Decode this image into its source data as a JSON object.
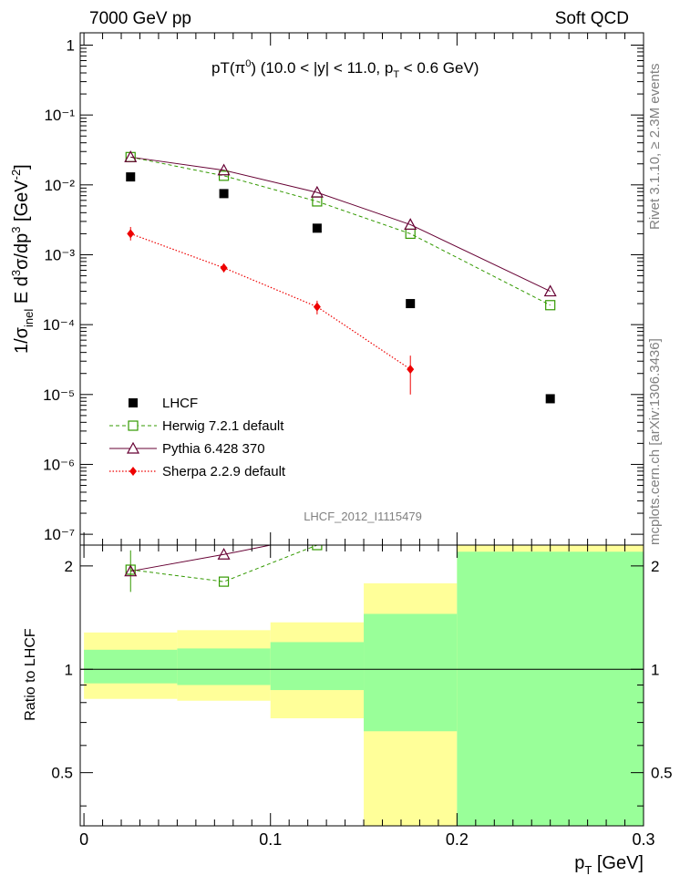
{
  "header": {
    "left": "7000 GeV pp",
    "right": "Soft QCD"
  },
  "side": {
    "rivet": "Rivet 3.1.10, ≥ 2.3M events",
    "mcplots": "mcplots.cern.ch [arXiv:1306.3436]"
  },
  "colors": {
    "lhcf": "#000000",
    "herwig": "#339900",
    "pythia": "#660033",
    "sherpa": "#ee0000",
    "band_inner": "#99ff99",
    "band_outer": "#ffff99"
  },
  "chart_data": [
    {
      "type": "scatter",
      "name": "main",
      "title": "pT(π⁰) (10.0 < |y| < 11.0, p_T < 0.6 GeV)",
      "ylabel": "1/σ_inel E d³σ/dp³ [GeV⁻²]",
      "yscale": "log",
      "ylim": [
        7e-08,
        1.5
      ],
      "xlim": [
        -0.002,
        0.3
      ],
      "yticks": [
        {
          "v": 1e-07,
          "label": "10⁻⁷"
        },
        {
          "v": 1e-06,
          "label": "10⁻⁶"
        },
        {
          "v": 1e-05,
          "label": "10⁻⁵"
        },
        {
          "v": 0.0001,
          "label": "10⁻⁴"
        },
        {
          "v": 0.001,
          "label": "10⁻³"
        },
        {
          "v": 0.01,
          "label": "10⁻²"
        },
        {
          "v": 0.1,
          "label": "10⁻¹"
        },
        {
          "v": 1,
          "label": "1"
        }
      ],
      "watermark": "LHCF_2012_I1115479",
      "legend_position": "bottom-left",
      "series": [
        {
          "name": "LHCF",
          "marker": "square-filled",
          "x": [
            0.025,
            0.075,
            0.125,
            0.175,
            0.25
          ],
          "y": [
            0.013,
            0.0075,
            0.0024,
            0.0002,
            8.7e-06
          ]
        },
        {
          "name": "Herwig 7.2.1 default",
          "marker": "square-open",
          "line": "dashed",
          "x": [
            0.025,
            0.075,
            0.125,
            0.175,
            0.25
          ],
          "y": [
            0.025,
            0.0135,
            0.0058,
            0.002,
            0.00019
          ]
        },
        {
          "name": "Pythia 6.428 370",
          "marker": "triangle-open",
          "line": "solid",
          "x": [
            0.025,
            0.075,
            0.125,
            0.175,
            0.25
          ],
          "y": [
            0.025,
            0.0162,
            0.0078,
            0.0027,
            0.0003
          ]
        },
        {
          "name": "Sherpa 2.2.9 default",
          "marker": "diamond-filled",
          "line": "dotted",
          "x": [
            0.025,
            0.075,
            0.125,
            0.175
          ],
          "y": [
            0.002,
            0.00065,
            0.00018,
            2.3e-05
          ],
          "ylo": [
            0.0016,
            0.00056,
            0.00014,
            1e-05
          ],
          "yhi": [
            0.0025,
            0.00075,
            0.00022,
            3.6e-05
          ]
        }
      ]
    },
    {
      "type": "scatter",
      "name": "ratio",
      "ylabel": "Ratio to LHCF",
      "xlabel": "p_T [GeV]",
      "ylim": [
        0.35,
        2.3
      ],
      "xlim": [
        -0.002,
        0.3
      ],
      "xticks": [
        {
          "v": 0,
          "label": "0"
        },
        {
          "v": 0.1,
          "label": "0.1"
        },
        {
          "v": 0.2,
          "label": "0.2"
        },
        {
          "v": 0.3,
          "label": "0.3"
        }
      ],
      "yticks": [
        {
          "v": 0.5,
          "label": "0.5"
        },
        {
          "v": 1,
          "label": "1"
        },
        {
          "v": 2,
          "label": "2"
        }
      ],
      "bands": [
        {
          "x0": 0.0,
          "x1": 0.05,
          "inner": [
            0.91,
            1.14
          ],
          "outer": [
            0.82,
            1.28
          ]
        },
        {
          "x0": 0.05,
          "x1": 0.1,
          "inner": [
            0.9,
            1.15
          ],
          "outer": [
            0.81,
            1.3
          ]
        },
        {
          "x0": 0.1,
          "x1": 0.15,
          "inner": [
            0.87,
            1.2
          ],
          "outer": [
            0.72,
            1.37
          ]
        },
        {
          "x0": 0.15,
          "x1": 0.2,
          "inner": [
            0.66,
            1.45
          ],
          "outer": [
            0.35,
            1.78
          ]
        },
        {
          "x0": 0.2,
          "x1": 0.3,
          "inner": [
            0.35,
            2.2
          ],
          "outer": [
            0.35,
            2.3
          ]
        }
      ],
      "series": [
        {
          "name": "Herwig 7.2.1 default",
          "x": [
            0.025,
            0.075,
            0.125
          ],
          "y": [
            1.95,
            1.8,
            2.3
          ]
        },
        {
          "name": "Pythia 6.428 370",
          "x": [
            0.025,
            0.075,
            0.1
          ],
          "y": [
            1.93,
            2.16,
            2.3
          ]
        }
      ]
    }
  ]
}
